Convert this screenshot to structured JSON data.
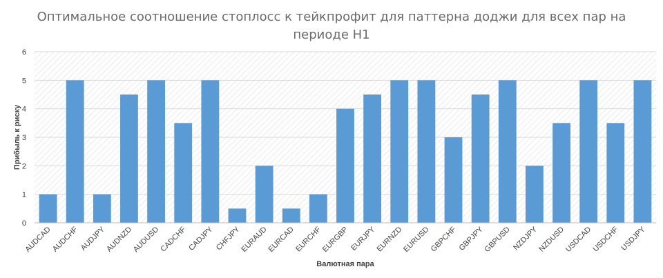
{
  "chart_data": {
    "type": "bar",
    "title_lines": [
      "Оптимальное соотношение стоплосс к тейкпрофит для паттерна доджи для всех пар на",
      "периоде H1"
    ],
    "xlabel": "Валютная пара",
    "ylabel": "Прибыль к риску",
    "ylim": [
      0,
      6
    ],
    "yticks": [
      "0",
      "1",
      "2",
      "3",
      "4",
      "5",
      "6"
    ],
    "categories": [
      "AUDCAD",
      "AUDCHF",
      "AUDJPY",
      "AUDNZD",
      "AUDUSD",
      "CADCHF",
      "CADJPY",
      "CHFJPY",
      "EURAUD",
      "EURCAD",
      "EURCHF",
      "EURGBP",
      "EURJPY",
      "EURNZD",
      "EURUSD",
      "GBPCHF",
      "GBPJPY",
      "GBPUSD",
      "NZDJPY",
      "NZDUSD",
      "USDCAD",
      "USDCHF",
      "USDJPY"
    ],
    "values": [
      1,
      5,
      1,
      4.5,
      5,
      3.5,
      5,
      0.5,
      2,
      0.5,
      1,
      4,
      4.5,
      5,
      5,
      3,
      4.5,
      5,
      2,
      3.5,
      5,
      3.5,
      5
    ],
    "bar_color": "#5b9bd5",
    "grid": true,
    "legend": "none"
  }
}
